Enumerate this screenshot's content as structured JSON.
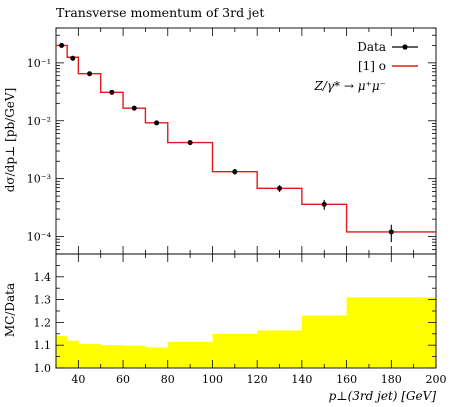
{
  "chart_data": {
    "type": "line",
    "title": "Transverse momentum of 3rd jet",
    "xlabel": "p⊥(3rd jet) [GeV]",
    "xlim": [
      30,
      200
    ],
    "main": {
      "ylabel": "dσ/dp⊥ [pb/GeV]",
      "yscale": "log",
      "ylim": [
        5e-05,
        0.4
      ],
      "ytick_labels": [
        "10⁻⁴",
        "10⁻³",
        "10⁻²",
        "10⁻¹"
      ],
      "legend": {
        "placement": "top-right",
        "entries": [
          "Data",
          "[1] o"
        ],
        "annotation": "Z/γ* → μ⁺μ⁻"
      },
      "data_points": {
        "name": "Data",
        "color": "#000000",
        "x": [
          32.5,
          37.5,
          45,
          55,
          65,
          75,
          90,
          110,
          130,
          150,
          180
        ],
        "y": [
          0.2,
          0.12,
          0.065,
          0.031,
          0.0165,
          0.0092,
          0.0042,
          0.00132,
          0.00068,
          0.00036,
          0.00012
        ],
        "yerr": [
          0.018,
          0.012,
          0.005,
          0.0025,
          0.0013,
          0.0008,
          0.0004,
          0.00015,
          9e-05,
          7e-05,
          4e-05
        ]
      },
      "mc_histogram": {
        "name": "[1] o",
        "color": "#e41a1c",
        "bin_edges": [
          30,
          35,
          40,
          50,
          60,
          70,
          80,
          100,
          120,
          140,
          160,
          200
        ],
        "values": [
          0.2,
          0.125,
          0.065,
          0.031,
          0.0165,
          0.0092,
          0.0042,
          0.00132,
          0.00068,
          0.00036,
          0.00012
        ]
      }
    },
    "ratio": {
      "ylabel": "MC/Data",
      "ylim": [
        1.0,
        1.5
      ],
      "yticks": [
        1.0,
        1.1,
        1.2,
        1.3,
        1.4
      ],
      "band_color": "#ffff00",
      "bin_edges": [
        30,
        35,
        40,
        50,
        60,
        70,
        80,
        100,
        120,
        140,
        160,
        200
      ],
      "band_upper": [
        1.14,
        1.12,
        1.105,
        1.1,
        1.098,
        1.09,
        1.115,
        1.15,
        1.165,
        1.23,
        1.31
      ],
      "xticks": [
        40,
        60,
        80,
        100,
        120,
        140,
        160,
        180,
        200
      ]
    }
  }
}
